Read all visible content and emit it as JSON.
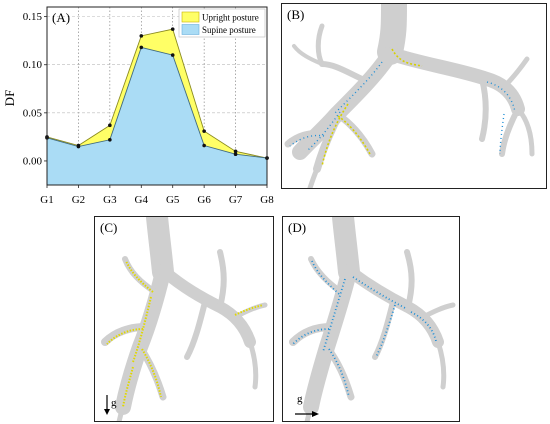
{
  "panels": {
    "a": "(A)",
    "b": "(B)",
    "c": "(C)",
    "d": "(D)"
  },
  "gravity_label": "g",
  "colors": {
    "upright": "#ffff66",
    "supine": "#aadcf5",
    "upright_dots": "#e8e000",
    "supine_dots": "#1e8ed6",
    "airway": "#d4d4d4"
  },
  "chart_data": {
    "type": "area",
    "title": "",
    "xlabel": "",
    "ylabel": "DF",
    "categories": [
      "G1",
      "G2",
      "G3",
      "G4",
      "G5",
      "G6",
      "G7",
      "G8"
    ],
    "ylim": [
      -0.025,
      0.16
    ],
    "yticks": [
      "0.00",
      "0.05",
      "0.10",
      "0.15"
    ],
    "grid": true,
    "legend_position": "top-right",
    "series": [
      {
        "name": "Upright posture",
        "values": [
          0.025,
          0.016,
          0.037,
          0.13,
          0.137,
          0.031,
          0.01,
          0.003
        ],
        "color": "#ffff66"
      },
      {
        "name": "Supine posture",
        "values": [
          0.024,
          0.015,
          0.022,
          0.118,
          0.11,
          0.016,
          0.007,
          0.003
        ],
        "color": "#aadcf5"
      }
    ]
  }
}
